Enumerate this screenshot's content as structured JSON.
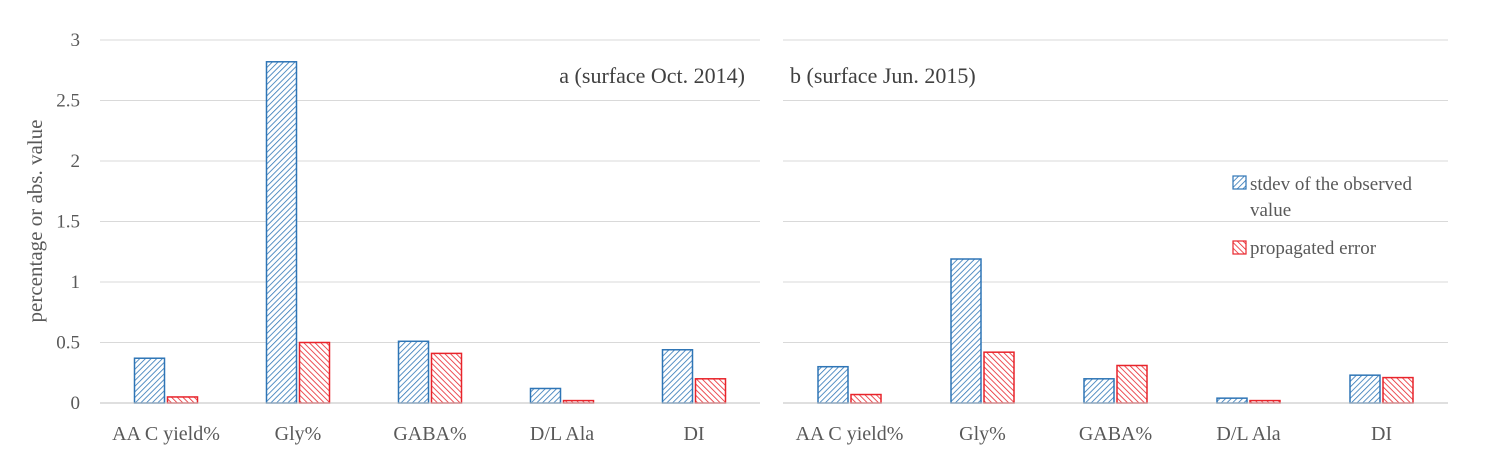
{
  "colors": {
    "series_observed": "#2e75b6",
    "series_propagated": "#e8242b",
    "gridline": "#d9d9d9",
    "text": "#595959"
  },
  "legend": {
    "items": [
      {
        "label_line1": "stdev of the observed",
        "label_line2": "value",
        "pattern": "hatch-blue"
      },
      {
        "label_line1": "propagated error",
        "label_line2": "",
        "pattern": "hatch-red"
      }
    ],
    "placement": "right"
  },
  "chart_data": [
    {
      "type": "bar",
      "title": "a (surface Oct. 2014)",
      "xlabel": "",
      "ylabel": "percentage  or abs. value",
      "ylim": [
        0,
        3
      ],
      "yticks": [
        "0",
        "0.5",
        "1",
        "1.5",
        "2",
        "2.5",
        "3"
      ],
      "grid": true,
      "categories": [
        "AA C yield%",
        "Gly%",
        "GABA%",
        "D/L Ala",
        "DI"
      ],
      "series": [
        {
          "name": "stdev of the observed value",
          "values": [
            0.37,
            2.82,
            0.51,
            0.12,
            0.44
          ]
        },
        {
          "name": "propagated error",
          "values": [
            0.05,
            0.5,
            0.41,
            0.02,
            0.2
          ]
        }
      ]
    },
    {
      "type": "bar",
      "title": "b (surface Jun. 2015)",
      "xlabel": "",
      "ylabel": "",
      "ylim": [
        0,
        3
      ],
      "grid": true,
      "categories": [
        "AA C yield%",
        "Gly%",
        "GABA%",
        "D/L Ala",
        "DI"
      ],
      "series": [
        {
          "name": "stdev of the observed value",
          "values": [
            0.3,
            1.19,
            0.2,
            0.04,
            0.23
          ]
        },
        {
          "name": "propagated error",
          "values": [
            0.07,
            0.42,
            0.31,
            0.02,
            0.21
          ]
        }
      ]
    }
  ]
}
